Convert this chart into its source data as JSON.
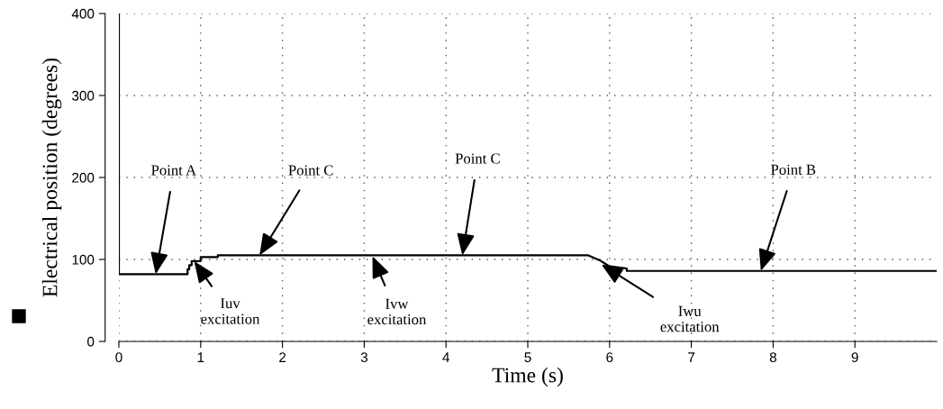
{
  "chart_data": {
    "type": "line",
    "xlabel": "Time (s)",
    "ylabel": "Electrical position (degrees)",
    "series": [
      {
        "color": "#000000",
        "x": [
          0,
          0,
          0.84,
          0.84,
          0.86,
          0.86,
          0.89,
          0.89,
          1.0,
          1.0,
          1.21,
          1.21,
          5.74,
          5.88,
          5.99,
          6.21,
          6.21,
          10
        ],
        "values": [
          400,
          82,
          82,
          88,
          88,
          93,
          93,
          98,
          98,
          103,
          103,
          105,
          105,
          99,
          92,
          89,
          86,
          86
        ]
      }
    ],
    "xlim": [
      0,
      10
    ],
    "ylim": [
      0,
      400
    ],
    "xticks": [
      0,
      1,
      2,
      3,
      4,
      5,
      6,
      7,
      8,
      9
    ],
    "yticks": [
      0,
      100,
      200,
      300,
      400
    ],
    "grid": true,
    "legend": false,
    "marker": "none",
    "line_style": "solid",
    "annotations": [
      {
        "text": "Point A",
        "x": 0.45,
        "y": 82
      },
      {
        "text": "Point C",
        "x": 1.72,
        "y": 105
      },
      {
        "text": "Point C",
        "x": 4.2,
        "y": 105
      },
      {
        "text": "Point B",
        "x": 7.85,
        "y": 86
      },
      {
        "text": "Iuv\nexcitation",
        "x": 0.92,
        "y": 98
      },
      {
        "text": "Ivw\nexcitation",
        "x": 3.1,
        "y": 104
      },
      {
        "text": "Iwu\nexcitation",
        "x": 5.9,
        "y": 94
      }
    ]
  }
}
